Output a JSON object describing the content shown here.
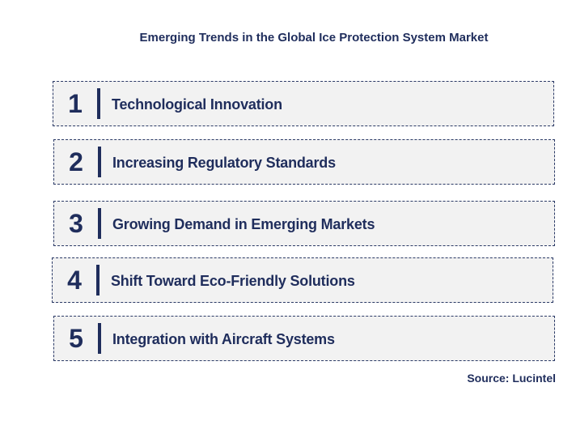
{
  "title": "Emerging Trends in the Global Ice Protection System Market",
  "trends": [
    {
      "number": "1",
      "label": "Technological Innovation"
    },
    {
      "number": "2",
      "label": "Increasing Regulatory Standards"
    },
    {
      "number": "3",
      "label": "Growing Demand in Emerging Markets"
    },
    {
      "number": "4",
      "label": "Shift Toward Eco-Friendly Solutions"
    },
    {
      "number": "5",
      "label": "Integration with Aircraft Systems"
    }
  ],
  "source": "Source: Lucintel",
  "colors": {
    "text": "#1f2d5c",
    "box_fill": "#f2f2f2",
    "box_border": "#2b3a66"
  }
}
